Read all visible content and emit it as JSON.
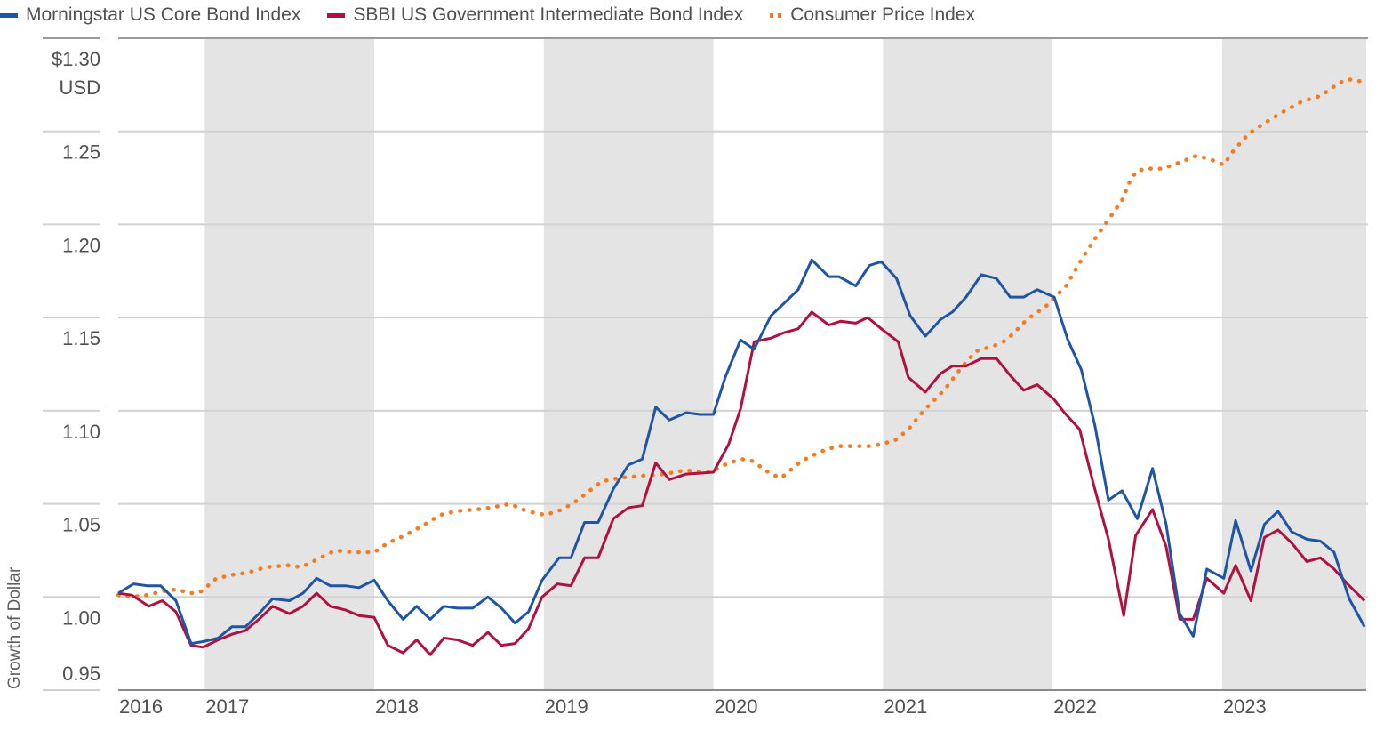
{
  "chart_data": {
    "type": "line",
    "title": "",
    "xlabel": "",
    "ylabel": "Growth of Dollar",
    "y_unit_label": "USD",
    "xlim": [
      2016.49,
      2023.85
    ],
    "ylim": [
      0.95,
      1.3
    ],
    "grid": true,
    "legend_position": "top-left",
    "y_ticks": [
      {
        "value": 1.3,
        "label": "$1.30"
      },
      {
        "value": 1.25,
        "label": "1.25"
      },
      {
        "value": 1.2,
        "label": "1.20"
      },
      {
        "value": 1.15,
        "label": "1.15"
      },
      {
        "value": 1.1,
        "label": "1.10"
      },
      {
        "value": 1.05,
        "label": "1.05"
      },
      {
        "value": 1.0,
        "label": "1.00"
      },
      {
        "value": 0.95,
        "label": "0.95"
      }
    ],
    "x_ticks": [
      {
        "value": 2016.49,
        "label": "2016"
      },
      {
        "value": 2017,
        "label": "2017"
      },
      {
        "value": 2018,
        "label": "2018"
      },
      {
        "value": 2019,
        "label": "2019"
      },
      {
        "value": 2020,
        "label": "2020"
      },
      {
        "value": 2021,
        "label": "2021"
      },
      {
        "value": 2022,
        "label": "2022"
      },
      {
        "value": 2023,
        "label": "2023"
      }
    ],
    "shaded_years": [
      [
        2017,
        2018
      ],
      [
        2019,
        2020
      ],
      [
        2021,
        2022
      ],
      [
        2023,
        2023.85
      ]
    ],
    "series": [
      {
        "name": "Morningstar US Core Bond Index",
        "color": "#1f56a3",
        "style": "solid",
        "points": [
          [
            2016.49,
            1.002
          ],
          [
            2016.58,
            1.007
          ],
          [
            2016.66,
            1.006
          ],
          [
            2016.74,
            1.006
          ],
          [
            2016.83,
            0.998
          ],
          [
            2016.92,
            0.975
          ],
          [
            2016.99,
            0.976
          ],
          [
            2017.08,
            0.978
          ],
          [
            2017.16,
            0.984
          ],
          [
            2017.24,
            0.984
          ],
          [
            2017.32,
            0.991
          ],
          [
            2017.4,
            0.999
          ],
          [
            2017.5,
            0.998
          ],
          [
            2017.58,
            1.002
          ],
          [
            2017.66,
            1.01
          ],
          [
            2017.74,
            1.006
          ],
          [
            2017.83,
            1.006
          ],
          [
            2017.91,
            1.005
          ],
          [
            2018.0,
            1.009
          ],
          [
            2018.08,
            0.998
          ],
          [
            2018.17,
            0.988
          ],
          [
            2018.25,
            0.995
          ],
          [
            2018.33,
            0.988
          ],
          [
            2018.41,
            0.995
          ],
          [
            2018.49,
            0.994
          ],
          [
            2018.58,
            0.994
          ],
          [
            2018.67,
            1.0
          ],
          [
            2018.75,
            0.994
          ],
          [
            2018.83,
            0.986
          ],
          [
            2018.91,
            0.992
          ],
          [
            2018.99,
            1.009
          ],
          [
            2019.09,
            1.021
          ],
          [
            2019.16,
            1.021
          ],
          [
            2019.24,
            1.04
          ],
          [
            2019.32,
            1.04
          ],
          [
            2019.41,
            1.058
          ],
          [
            2019.5,
            1.071
          ],
          [
            2019.58,
            1.074
          ],
          [
            2019.66,
            1.102
          ],
          [
            2019.74,
            1.095
          ],
          [
            2019.84,
            1.099
          ],
          [
            2019.92,
            1.098
          ],
          [
            2020.0,
            1.098
          ],
          [
            2020.07,
            1.118
          ],
          [
            2020.16,
            1.138
          ],
          [
            2020.24,
            1.133
          ],
          [
            2020.34,
            1.151
          ],
          [
            2020.42,
            1.158
          ],
          [
            2020.5,
            1.165
          ],
          [
            2020.58,
            1.181
          ],
          [
            2020.68,
            1.172
          ],
          [
            2020.74,
            1.172
          ],
          [
            2020.84,
            1.167
          ],
          [
            2020.92,
            1.178
          ],
          [
            2020.99,
            1.18
          ],
          [
            2021.08,
            1.171
          ],
          [
            2021.16,
            1.151
          ],
          [
            2021.25,
            1.14
          ],
          [
            2021.34,
            1.149
          ],
          [
            2021.41,
            1.153
          ],
          [
            2021.49,
            1.161
          ],
          [
            2021.58,
            1.173
          ],
          [
            2021.67,
            1.171
          ],
          [
            2021.75,
            1.161
          ],
          [
            2021.83,
            1.161
          ],
          [
            2021.91,
            1.165
          ],
          [
            2022.01,
            1.161
          ],
          [
            2022.09,
            1.138
          ],
          [
            2022.17,
            1.122
          ],
          [
            2022.25,
            1.092
          ],
          [
            2022.33,
            1.052
          ],
          [
            2022.41,
            1.057
          ],
          [
            2022.5,
            1.042
          ],
          [
            2022.59,
            1.069
          ],
          [
            2022.67,
            1.039
          ],
          [
            2022.75,
            0.991
          ],
          [
            2022.83,
            0.979
          ],
          [
            2022.91,
            1.015
          ],
          [
            2023.01,
            1.01
          ],
          [
            2023.08,
            1.041
          ],
          [
            2023.17,
            1.014
          ],
          [
            2023.25,
            1.039
          ],
          [
            2023.33,
            1.046
          ],
          [
            2023.41,
            1.035
          ],
          [
            2023.5,
            1.031
          ],
          [
            2023.58,
            1.03
          ],
          [
            2023.66,
            1.024
          ],
          [
            2023.75,
            0.999
          ],
          [
            2023.84,
            0.984
          ]
        ]
      },
      {
        "name": "SBBI US Government Intermediate Bond Index",
        "color": "#b01240",
        "style": "solid",
        "points": [
          [
            2016.49,
            1.002
          ],
          [
            2016.57,
            1.001
          ],
          [
            2016.67,
            0.995
          ],
          [
            2016.75,
            0.998
          ],
          [
            2016.83,
            0.992
          ],
          [
            2016.92,
            0.974
          ],
          [
            2016.99,
            0.973
          ],
          [
            2017.08,
            0.977
          ],
          [
            2017.16,
            0.98
          ],
          [
            2017.24,
            0.982
          ],
          [
            2017.32,
            0.988
          ],
          [
            2017.4,
            0.995
          ],
          [
            2017.5,
            0.991
          ],
          [
            2017.58,
            0.995
          ],
          [
            2017.66,
            1.002
          ],
          [
            2017.74,
            0.995
          ],
          [
            2017.83,
            0.993
          ],
          [
            2017.91,
            0.99
          ],
          [
            2018.0,
            0.989
          ],
          [
            2018.08,
            0.974
          ],
          [
            2018.17,
            0.97
          ],
          [
            2018.25,
            0.977
          ],
          [
            2018.33,
            0.969
          ],
          [
            2018.41,
            0.978
          ],
          [
            2018.49,
            0.977
          ],
          [
            2018.58,
            0.974
          ],
          [
            2018.67,
            0.981
          ],
          [
            2018.75,
            0.974
          ],
          [
            2018.83,
            0.975
          ],
          [
            2018.91,
            0.983
          ],
          [
            2018.99,
            1.0
          ],
          [
            2019.08,
            1.007
          ],
          [
            2019.16,
            1.006
          ],
          [
            2019.24,
            1.021
          ],
          [
            2019.32,
            1.021
          ],
          [
            2019.41,
            1.042
          ],
          [
            2019.5,
            1.048
          ],
          [
            2019.58,
            1.049
          ],
          [
            2019.66,
            1.072
          ],
          [
            2019.74,
            1.063
          ],
          [
            2019.84,
            1.066
          ],
          [
            2020.0,
            1.067
          ],
          [
            2020.09,
            1.082
          ],
          [
            2020.16,
            1.101
          ],
          [
            2020.24,
            1.137
          ],
          [
            2020.34,
            1.139
          ],
          [
            2020.42,
            1.142
          ],
          [
            2020.5,
            1.144
          ],
          [
            2020.58,
            1.153
          ],
          [
            2020.68,
            1.146
          ],
          [
            2020.75,
            1.148
          ],
          [
            2020.84,
            1.147
          ],
          [
            2020.91,
            1.15
          ],
          [
            2020.99,
            1.144
          ],
          [
            2021.09,
            1.137
          ],
          [
            2021.15,
            1.118
          ],
          [
            2021.25,
            1.11
          ],
          [
            2021.34,
            1.12
          ],
          [
            2021.41,
            1.124
          ],
          [
            2021.49,
            1.124
          ],
          [
            2021.58,
            1.128
          ],
          [
            2021.67,
            1.128
          ],
          [
            2021.75,
            1.119
          ],
          [
            2021.83,
            1.111
          ],
          [
            2021.91,
            1.114
          ],
          [
            2022.01,
            1.106
          ],
          [
            2022.07,
            1.099
          ],
          [
            2022.16,
            1.09
          ],
          [
            2022.24,
            1.061
          ],
          [
            2022.33,
            1.031
          ],
          [
            2022.42,
            0.99
          ],
          [
            2022.49,
            1.033
          ],
          [
            2022.59,
            1.047
          ],
          [
            2022.67,
            1.027
          ],
          [
            2022.75,
            0.988
          ],
          [
            2022.83,
            0.988
          ],
          [
            2022.91,
            1.01
          ],
          [
            2023.01,
            1.002
          ],
          [
            2023.08,
            1.017
          ],
          [
            2023.17,
            0.998
          ],
          [
            2023.25,
            1.032
          ],
          [
            2023.33,
            1.036
          ],
          [
            2023.41,
            1.029
          ],
          [
            2023.5,
            1.019
          ],
          [
            2023.58,
            1.021
          ],
          [
            2023.66,
            1.015
          ],
          [
            2023.75,
            1.006
          ],
          [
            2023.84,
            0.998
          ]
        ]
      },
      {
        "name": "Consumer Price Index",
        "color": "#f47b20",
        "style": "dotted",
        "points": [
          [
            2016.49,
            1.001
          ],
          [
            2016.57,
            1.0
          ],
          [
            2016.66,
            1.001
          ],
          [
            2016.75,
            1.003
          ],
          [
            2016.83,
            1.004
          ],
          [
            2016.92,
            1.002
          ],
          [
            2016.98,
            1.003
          ],
          [
            2017.07,
            1.01
          ],
          [
            2017.17,
            1.012
          ],
          [
            2017.25,
            1.013
          ],
          [
            2017.36,
            1.016
          ],
          [
            2017.49,
            1.017
          ],
          [
            2017.57,
            1.016
          ],
          [
            2017.66,
            1.02
          ],
          [
            2017.77,
            1.025
          ],
          [
            2017.87,
            1.024
          ],
          [
            2018.0,
            1.024
          ],
          [
            2018.08,
            1.029
          ],
          [
            2018.18,
            1.033
          ],
          [
            2018.28,
            1.038
          ],
          [
            2018.39,
            1.044
          ],
          [
            2018.48,
            1.046
          ],
          [
            2018.6,
            1.047
          ],
          [
            2018.69,
            1.048
          ],
          [
            2018.8,
            1.05
          ],
          [
            2018.9,
            1.046
          ],
          [
            2019.01,
            1.044
          ],
          [
            2019.11,
            1.047
          ],
          [
            2019.2,
            1.052
          ],
          [
            2019.34,
            1.062
          ],
          [
            2019.45,
            1.064
          ],
          [
            2019.57,
            1.065
          ],
          [
            2019.71,
            1.066
          ],
          [
            2019.83,
            1.068
          ],
          [
            2019.98,
            1.067
          ],
          [
            2020.09,
            1.072
          ],
          [
            2020.17,
            1.074
          ],
          [
            2020.23,
            1.073
          ],
          [
            2020.34,
            1.066
          ],
          [
            2020.4,
            1.064
          ],
          [
            2020.52,
            1.073
          ],
          [
            2020.63,
            1.078
          ],
          [
            2020.73,
            1.081
          ],
          [
            2020.86,
            1.081
          ],
          [
            2020.94,
            1.081
          ],
          [
            2021.07,
            1.084
          ],
          [
            2021.15,
            1.09
          ],
          [
            2021.24,
            1.1
          ],
          [
            2021.36,
            1.111
          ],
          [
            2021.47,
            1.124
          ],
          [
            2021.55,
            1.132
          ],
          [
            2021.66,
            1.135
          ],
          [
            2021.73,
            1.138
          ],
          [
            2021.85,
            1.149
          ],
          [
            2021.96,
            1.156
          ],
          [
            2022.08,
            1.167
          ],
          [
            2022.17,
            1.181
          ],
          [
            2022.24,
            1.191
          ],
          [
            2022.31,
            1.2
          ],
          [
            2022.41,
            1.213
          ],
          [
            2022.46,
            1.224
          ],
          [
            2022.5,
            1.229
          ],
          [
            2022.57,
            1.23
          ],
          [
            2022.65,
            1.23
          ],
          [
            2022.77,
            1.234
          ],
          [
            2022.85,
            1.237
          ],
          [
            2022.93,
            1.235
          ],
          [
            2023.01,
            1.232
          ],
          [
            2023.07,
            1.24
          ],
          [
            2023.16,
            1.249
          ],
          [
            2023.26,
            1.255
          ],
          [
            2023.35,
            1.26
          ],
          [
            2023.47,
            1.266
          ],
          [
            2023.58,
            1.269
          ],
          [
            2023.69,
            1.276
          ],
          [
            2023.74,
            1.278
          ],
          [
            2023.81,
            1.277
          ]
        ]
      }
    ]
  }
}
